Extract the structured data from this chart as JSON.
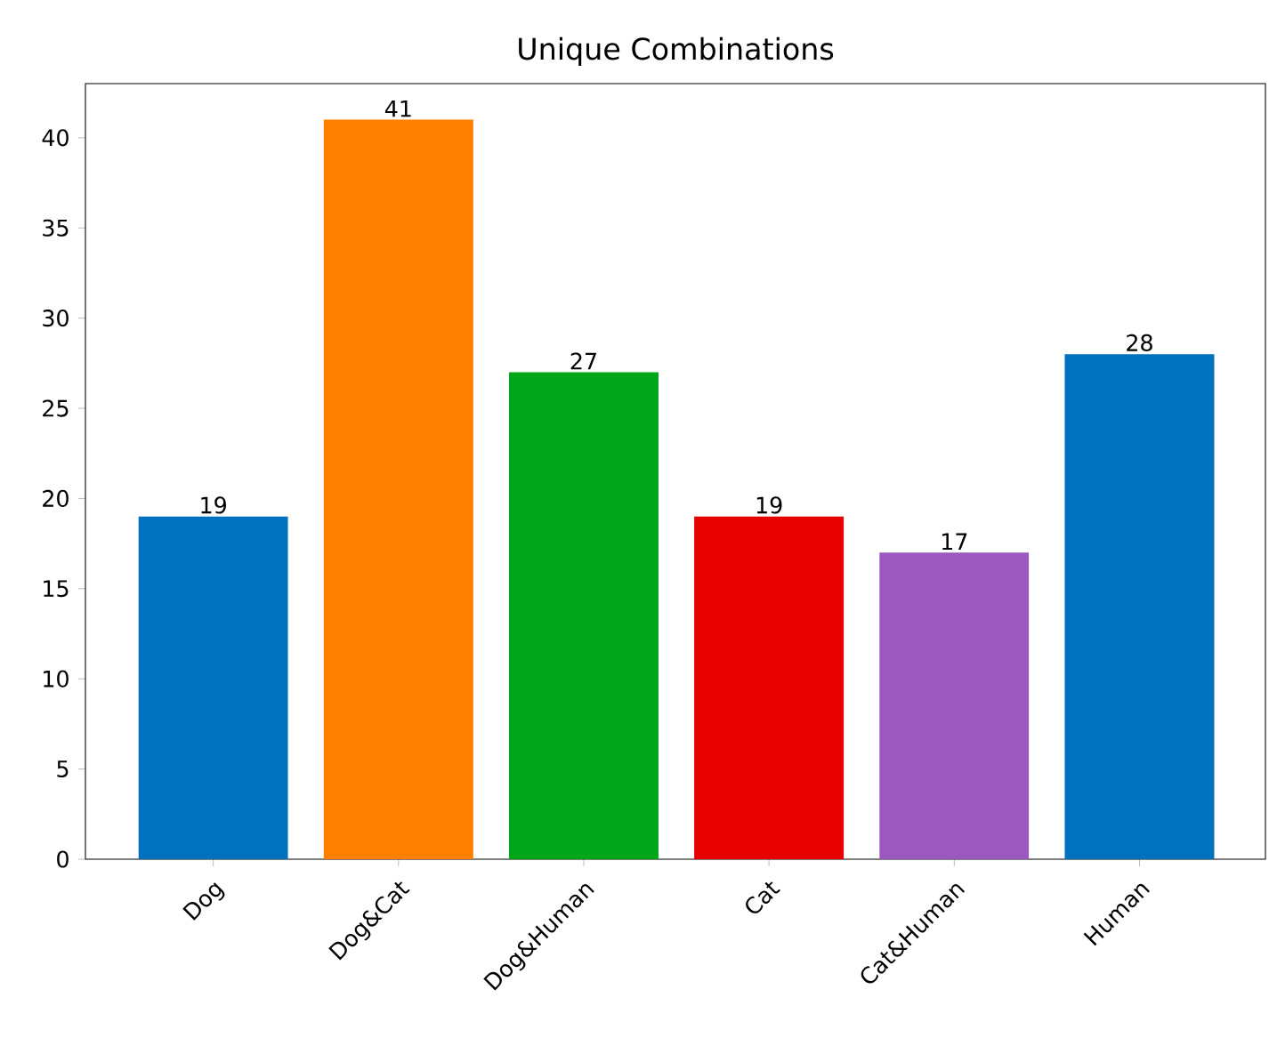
{
  "chart_data": {
    "type": "bar",
    "title": "Unique Combinations",
    "categories": [
      "Dog",
      "Dog&Cat",
      "Dog&Human",
      "Cat",
      "Cat&Human",
      "Human"
    ],
    "values": [
      19,
      41,
      27,
      19,
      17,
      28
    ],
    "colors": [
      "#0072bd",
      "#ff7f00",
      "#00a619",
      "#e60000",
      "#9b59c0",
      "#0072bd"
    ],
    "ylim": [
      0,
      43
    ],
    "yticks": [
      0,
      5,
      10,
      15,
      20,
      25,
      30,
      35,
      40
    ],
    "data_labels": true,
    "grid": false
  }
}
